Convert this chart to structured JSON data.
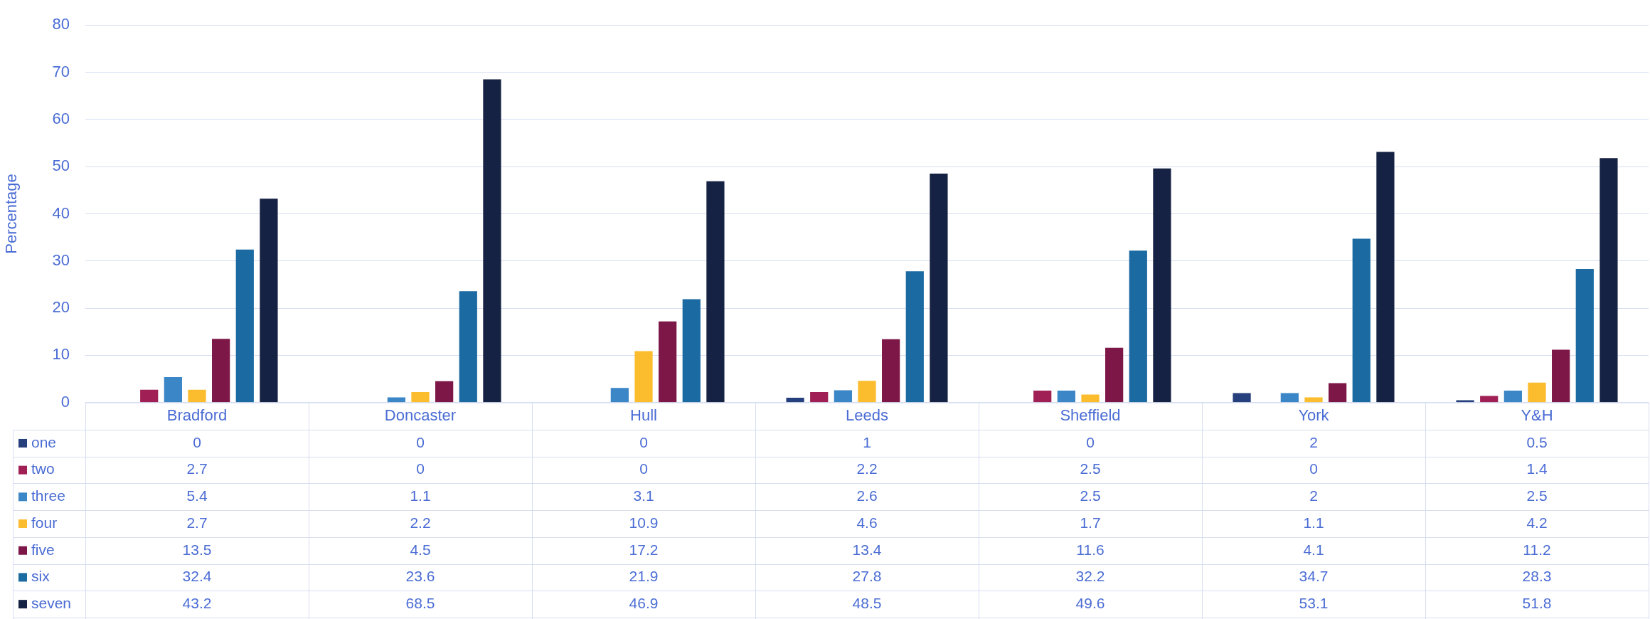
{
  "chart_data": {
    "type": "bar",
    "ylabel": "Percentage",
    "categories": [
      "Bradford",
      "Doncaster",
      "Hull",
      "Leeds",
      "Sheffield",
      "York",
      "Y&H"
    ],
    "series": [
      {
        "name": "one",
        "color": "#263f7d",
        "values": [
          0,
          0,
          0,
          1,
          0,
          2,
          0.5
        ]
      },
      {
        "name": "two",
        "color": "#a01f55",
        "values": [
          2.7,
          0,
          0,
          2.2,
          2.5,
          0,
          1.4
        ]
      },
      {
        "name": "three",
        "color": "#3b86c6",
        "values": [
          5.4,
          1.1,
          3.1,
          2.6,
          2.5,
          2,
          2.5
        ]
      },
      {
        "name": "four",
        "color": "#fbbd2e",
        "values": [
          2.7,
          2.2,
          10.9,
          4.6,
          1.7,
          1.1,
          4.2
        ]
      },
      {
        "name": "five",
        "color": "#7d1747",
        "values": [
          13.5,
          4.5,
          17.2,
          13.4,
          11.6,
          4.1,
          11.2
        ]
      },
      {
        "name": "six",
        "color": "#1b6aa2",
        "values": [
          32.4,
          23.6,
          21.9,
          27.8,
          32.2,
          34.7,
          28.3
        ]
      },
      {
        "name": "seven",
        "color": "#162243",
        "values": [
          43.2,
          68.5,
          46.9,
          48.5,
          49.6,
          53.1,
          51.8
        ]
      }
    ],
    "ylim": [
      0,
      80
    ],
    "yticks": [
      0,
      10,
      20,
      30,
      40,
      50,
      60,
      70,
      80
    ],
    "grid": "y",
    "legend": "bottom",
    "data_labels": true
  }
}
